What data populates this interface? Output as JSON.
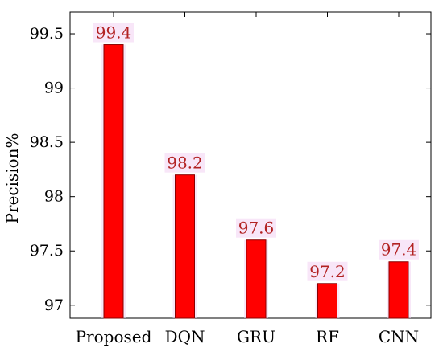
{
  "chart_data": {
    "type": "bar",
    "categories": [
      "Proposed",
      "DQN",
      "GRU",
      "RF",
      "CNN"
    ],
    "values": [
      99.4,
      98.2,
      97.6,
      97.2,
      97.4
    ],
    "data_labels": [
      "99.4",
      "98.2",
      "97.6",
      "97.2",
      "97.4"
    ],
    "title": "",
    "xlabel": "",
    "ylabel": "Precision%",
    "ylim": [
      96.88,
      99.7
    ],
    "yticks": [
      97,
      97.5,
      98,
      98.5,
      99,
      99.5
    ],
    "ytick_labels": [
      "97",
      "97.5",
      "98",
      "98.5",
      "99",
      "99.5"
    ],
    "grid": false,
    "legend": "none",
    "colors": {
      "bar_fill": "#ff0000",
      "bar_edge": "#8b0000",
      "data_label": "#b22222",
      "label_halo": "#f3d6f3",
      "axis": "#000000"
    }
  }
}
